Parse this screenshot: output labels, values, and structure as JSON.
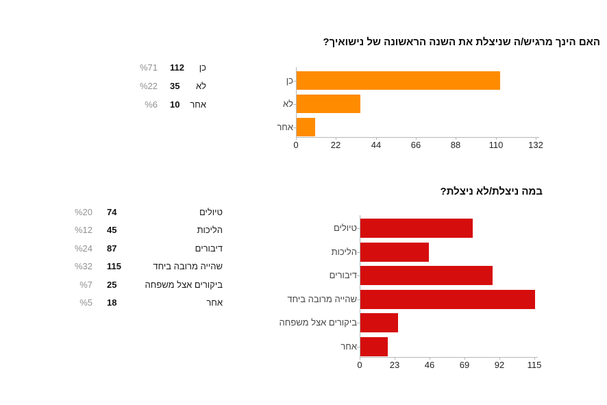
{
  "page": {
    "background": "#ffffff"
  },
  "colors": {
    "axis": "#b7b7b7",
    "tick_label": "#222222",
    "category_label": "#474747",
    "percent_text": "#909090",
    "count_text": "#111111",
    "title_text": "#0a0a0a"
  },
  "chart_data": [
    {
      "type": "bar",
      "orientation": "horizontal",
      "direction": "rtl",
      "title": "האם הינך מרגיש/ה שניצלת את השנה הראשונה של נישואיך?",
      "categories": [
        "כן",
        "לא",
        "אחר"
      ],
      "values": [
        112,
        35,
        10
      ],
      "percent_labels": [
        "%71",
        "%22",
        "%6"
      ],
      "xticks": [
        0,
        22,
        44,
        66,
        88,
        110,
        132
      ],
      "xlim": [
        0,
        132
      ],
      "bar_color": "#ff8c00",
      "grid": false,
      "legend_position": "left-table"
    },
    {
      "type": "bar",
      "orientation": "horizontal",
      "direction": "rtl",
      "title": "במה ניצלת/לא ניצלת?",
      "categories": [
        "טיולים",
        "הליכות",
        "דיבורים",
        "שהייה מרובה ביחד",
        "ביקורים אצל משפחה",
        "אחר"
      ],
      "values": [
        74,
        45,
        87,
        115,
        25,
        18
      ],
      "percent_labels": [
        "%20",
        "%12",
        "%24",
        "%32",
        "%7",
        "%5"
      ],
      "xticks": [
        0,
        23,
        46,
        69,
        92,
        115
      ],
      "xlim": [
        0,
        115
      ],
      "bar_color": "#d50d0d",
      "grid": false,
      "legend_position": "left-table"
    }
  ]
}
